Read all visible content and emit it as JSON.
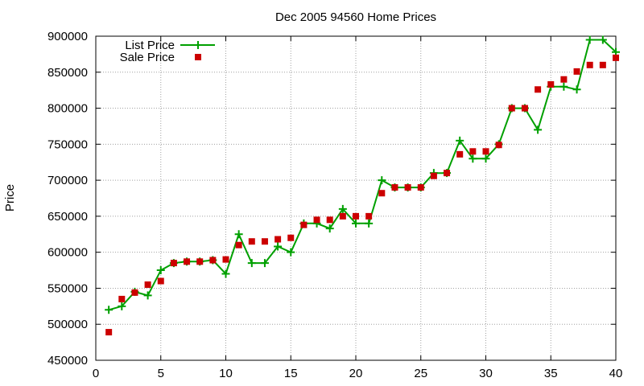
{
  "chart_data": {
    "type": "line",
    "title": "Dec 2005 94560 Home Prices",
    "xlabel": "",
    "ylabel": "Price",
    "xlim": [
      0,
      40
    ],
    "ylim": [
      450000,
      900000
    ],
    "xticks": [
      0,
      5,
      10,
      15,
      20,
      25,
      30,
      35,
      40
    ],
    "yticks": [
      450000,
      500000,
      550000,
      600000,
      650000,
      700000,
      750000,
      800000,
      850000,
      900000
    ],
    "grid": true,
    "legend_position": "top-left",
    "series": [
      {
        "name": "List Price",
        "style": "line-with-plus-markers",
        "color": "#00a000",
        "x": [
          1,
          2,
          3,
          4,
          5,
          6,
          7,
          8,
          9,
          10,
          11,
          12,
          13,
          14,
          15,
          16,
          17,
          18,
          19,
          20,
          21,
          22,
          23,
          24,
          25,
          26,
          27,
          28,
          29,
          30,
          31,
          32,
          33,
          34,
          35,
          36,
          37,
          38,
          39,
          40
        ],
        "y": [
          520000,
          525000,
          545000,
          540000,
          575000,
          585000,
          587000,
          587000,
          589000,
          570000,
          625000,
          585000,
          585000,
          608000,
          600000,
          640000,
          640000,
          633000,
          660000,
          640000,
          640000,
          700000,
          690000,
          690000,
          690000,
          710000,
          710000,
          755000,
          730000,
          730000,
          750000,
          800000,
          800000,
          770000,
          830000,
          830000,
          826000,
          895000,
          895000,
          878000
        ]
      },
      {
        "name": "Sale Price",
        "style": "square-points",
        "color": "#cc0000",
        "x": [
          1,
          2,
          3,
          4,
          5,
          6,
          7,
          8,
          9,
          10,
          11,
          12,
          13,
          14,
          15,
          16,
          17,
          18,
          19,
          20,
          21,
          22,
          23,
          24,
          25,
          26,
          27,
          28,
          29,
          30,
          31,
          32,
          33,
          34,
          35,
          36,
          37,
          38,
          39,
          40
        ],
        "y": [
          489000,
          535000,
          544000,
          555000,
          560000,
          585000,
          587000,
          587000,
          589000,
          590000,
          610000,
          615000,
          615000,
          618000,
          620000,
          638000,
          645000,
          645000,
          650000,
          650000,
          650000,
          682000,
          690000,
          690000,
          690000,
          706000,
          710000,
          736000,
          740000,
          740000,
          749000,
          800000,
          800000,
          826000,
          833000,
          840000,
          851000,
          860000,
          860000,
          870000
        ]
      }
    ]
  }
}
